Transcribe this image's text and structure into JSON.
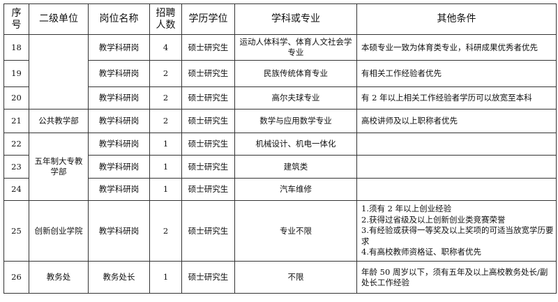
{
  "headers": [
    "序号",
    "二级单位",
    "岗位名称",
    "招聘人数",
    "学历学位",
    "学科或专业",
    "其他条件"
  ],
  "units": {
    "u1": "",
    "u2": "公共教学部",
    "u3": "五年制大专教学部",
    "u4": "创新创业学院",
    "u5": "教务处"
  },
  "rows": [
    {
      "no": "18",
      "post": "教学科研岗",
      "count": "4",
      "degree": "硕士研究生",
      "major": "运动人体科学、体育人文社会学专业",
      "cond": "本硕专业一致为体育类专业，科研成果优秀者优先"
    },
    {
      "no": "19",
      "post": "教学科研岗",
      "count": "2",
      "degree": "硕士研究生",
      "major": "民族传统体育专业",
      "cond": "有相关工作经验者优先"
    },
    {
      "no": "20",
      "post": "教学科研岗",
      "count": "2",
      "degree": "硕士研究生",
      "major": "高尔夫球专业",
      "cond": "有 2 年以上相关工作经验者学历可以放宽至本科"
    },
    {
      "no": "21",
      "post": "教学科研岗",
      "count": "2",
      "degree": "硕士研究生",
      "major": "数学与应用数学专业",
      "cond": "高校讲师及以上职称者优先"
    },
    {
      "no": "22",
      "post": "教学科研岗",
      "count": "1",
      "degree": "硕士研究生",
      "major": "机械设计、机电一体化",
      "cond": ""
    },
    {
      "no": "23",
      "post": "教学科研岗",
      "count": "1",
      "degree": "硕士研究生",
      "major": "建筑类",
      "cond": ""
    },
    {
      "no": "24",
      "post": "教学科研岗",
      "count": "1",
      "degree": "硕士研究生",
      "major": "汽车维修",
      "cond": ""
    },
    {
      "no": "25",
      "post": "教学科研岗",
      "count": "2",
      "degree": "硕士研究生",
      "major": "专业不限",
      "cond_lines": [
        "1.须有 2 年以上创业经验",
        "2.获得过省级及以上创新创业类竞赛荣誉",
        "3.有经验或获得一等奖及以上奖项的可适当放宽学历要求",
        "4.有高校教师资格证、职称者优先"
      ]
    },
    {
      "no": "26",
      "post": "教务处长",
      "count": "1",
      "degree": "硕士研究生",
      "major": "不限",
      "cond": "年龄 50 周岁以下，须有五年及以上高校教务处长/副处长工作经验"
    }
  ]
}
